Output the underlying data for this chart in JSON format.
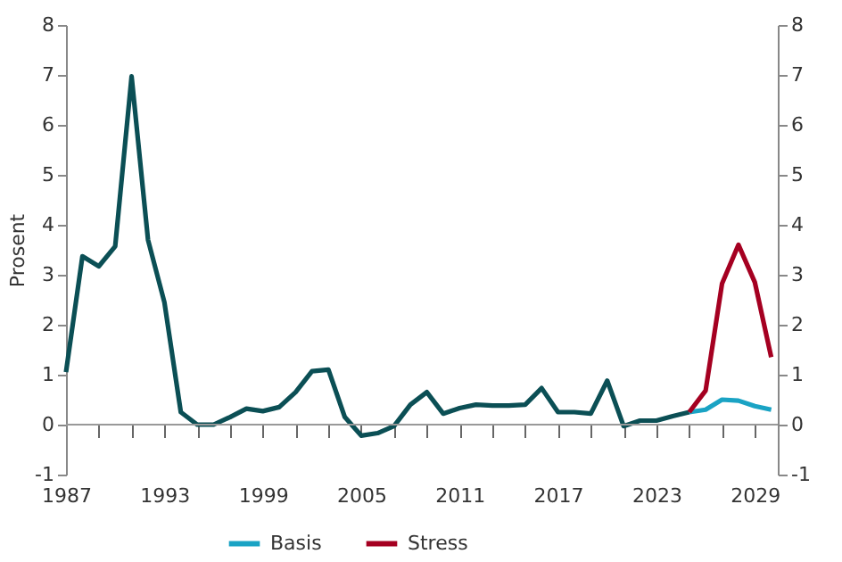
{
  "chart_data": {
    "type": "line",
    "ylabel": "Prosent",
    "xlim": [
      1987,
      2030.4
    ],
    "xticks": [
      1987,
      {
        "value": 1989,
        "label": null
      },
      {
        "value": 1991,
        "label": null
      },
      1993,
      {
        "value": 1995,
        "label": null
      },
      {
        "value": 1997,
        "label": null
      },
      1999,
      {
        "value": 2001,
        "label": null
      },
      {
        "value": 2003,
        "label": null
      },
      2005,
      {
        "value": 2007,
        "label": null
      },
      {
        "value": 2009,
        "label": null
      },
      2011,
      {
        "value": 2013,
        "label": null
      },
      {
        "value": 2015,
        "label": null
      },
      2017,
      {
        "value": 2019,
        "label": null
      },
      {
        "value": 2021,
        "label": null
      },
      2023,
      {
        "value": 2025,
        "label": null
      },
      {
        "value": 2027,
        "label": null
      },
      2029
    ],
    "ylim": [
      -1,
      8
    ],
    "yticks": [
      -1,
      0,
      1,
      2,
      3,
      4,
      5,
      6,
      7,
      8
    ],
    "y2lim": [
      -1,
      8
    ],
    "y2ticks": [
      -1,
      0,
      1,
      2,
      3,
      4,
      5,
      6,
      7,
      8
    ],
    "grid": false,
    "legend": "bottom",
    "ref_lines": [
      {
        "axis": "y",
        "value": 0,
        "color": "#999999"
      }
    ],
    "series": [
      {
        "color": "#0b4f55",
        "x": [
          1987,
          1988,
          1989,
          1990,
          1991,
          1992,
          1993,
          1994,
          1995,
          1996,
          1997,
          1998,
          1999,
          2000,
          2001,
          2002,
          2003,
          2004,
          2005,
          2006,
          2007,
          2008,
          2009,
          2010,
          2011,
          2012,
          2013,
          2014,
          2015,
          2016,
          2017,
          2018,
          2019,
          2020,
          2021,
          2022,
          2023,
          2024,
          2025
        ],
        "values": [
          1.05,
          3.37,
          3.17,
          3.57,
          6.97,
          3.7,
          2.45,
          0.25,
          0.0,
          0.0,
          0.15,
          0.32,
          0.27,
          0.35,
          0.65,
          1.07,
          1.1,
          0.15,
          -0.22,
          -0.17,
          -0.03,
          0.4,
          0.65,
          0.22,
          0.33,
          0.4,
          0.38,
          0.38,
          0.4,
          0.73,
          0.25,
          0.25,
          0.22,
          0.88,
          -0.03,
          0.08,
          0.08,
          0.17,
          0.25
        ]
      },
      {
        "name": "Basis",
        "color": "#1aa3c4",
        "x": [
          2025,
          2026,
          2027,
          2028,
          2029,
          2030
        ],
        "values": [
          0.25,
          0.3,
          0.5,
          0.48,
          0.37,
          0.3
        ]
      },
      {
        "name": "Stress",
        "color": "#a50021",
        "x": [
          2025,
          2026,
          2027,
          2028,
          2029,
          2030
        ],
        "values": [
          0.25,
          0.68,
          2.82,
          3.6,
          2.85,
          1.35
        ]
      }
    ]
  }
}
